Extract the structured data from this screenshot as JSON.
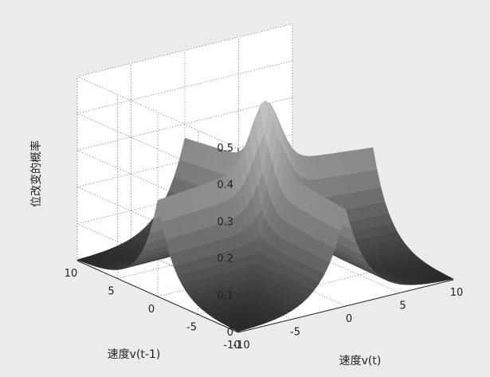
{
  "chart_data": {
    "type": "surface3d",
    "title": "",
    "xlabel": "速度v(t)",
    "ylabel": "速度v(t-1)",
    "zlabel": "位改变的概率",
    "xlim": [
      -10,
      10
    ],
    "ylim": [
      -10,
      10
    ],
    "zlim": [
      0,
      0.5
    ],
    "x_ticks": [
      "-10",
      "-5",
      "0",
      "5",
      "10"
    ],
    "y_ticks": [
      "-10",
      "-5",
      "0",
      "5",
      "10"
    ],
    "z_ticks": [
      "0",
      "0.1",
      "0.2",
      "0.3",
      "0.4",
      "0.5"
    ],
    "grid": true,
    "surface_samples": [
      {
        "x": 0,
        "y": 0,
        "z": 0.46
      },
      {
        "x": 10,
        "y": 0,
        "z": 0.29
      },
      {
        "x": -10,
        "y": 0,
        "z": 0.29
      },
      {
        "x": 0,
        "y": 10,
        "z": 0.29
      },
      {
        "x": 0,
        "y": -10,
        "z": 0.29
      },
      {
        "x": 10,
        "y": 10,
        "z": 0.0
      },
      {
        "x": -10,
        "y": -10,
        "z": 0.0
      }
    ]
  },
  "colors": {
    "background": "#ebebeb",
    "plot_background": "#ffffff",
    "grid": "#8a8a8a",
    "axis_text": "#222222"
  }
}
